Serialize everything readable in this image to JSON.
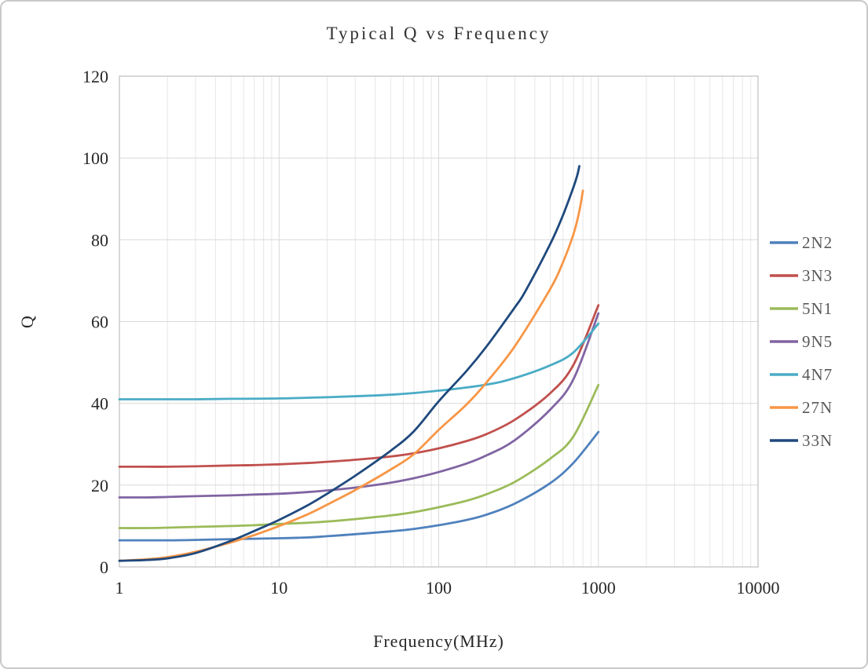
{
  "figure": {
    "background": "#ffffff",
    "border_color": "#c9c9c9"
  },
  "chart_data": {
    "type": "line",
    "title": "Typical Q vs Frequency",
    "xlabel": "Frequency(MHz)",
    "ylabel": "Q",
    "x_scale": "log",
    "xlim": [
      1,
      10000
    ],
    "ylim": [
      0,
      120
    ],
    "x_ticks": [
      1,
      10,
      100,
      1000,
      10000
    ],
    "y_ticks": [
      0,
      20,
      40,
      60,
      80,
      100,
      120
    ],
    "grid": {
      "major_color": "#d9d9d9",
      "minor_color": "#e7e7e7",
      "border_color": "#bfbfbf",
      "show_minor_x": true
    },
    "legend_position": "right",
    "series": [
      {
        "name": "2N2",
        "color": "#4F81BD",
        "points": [
          [
            1,
            6.5
          ],
          [
            1.5,
            6.5
          ],
          [
            2,
            6.5
          ],
          [
            3,
            6.6
          ],
          [
            5,
            6.8
          ],
          [
            7,
            6.9
          ],
          [
            10,
            7.0
          ],
          [
            15,
            7.2
          ],
          [
            20,
            7.5
          ],
          [
            30,
            8.0
          ],
          [
            50,
            8.7
          ],
          [
            70,
            9.3
          ],
          [
            100,
            10.2
          ],
          [
            150,
            11.5
          ],
          [
            200,
            12.8
          ],
          [
            300,
            15.5
          ],
          [
            500,
            20.5
          ],
          [
            700,
            25.5
          ],
          [
            1000,
            33
          ]
        ]
      },
      {
        "name": "3N3",
        "color": "#C0504D",
        "points": [
          [
            1,
            24.5
          ],
          [
            1.5,
            24.5
          ],
          [
            2,
            24.5
          ],
          [
            3,
            24.6
          ],
          [
            5,
            24.8
          ],
          [
            7,
            24.9
          ],
          [
            10,
            25.1
          ],
          [
            15,
            25.4
          ],
          [
            20,
            25.7
          ],
          [
            30,
            26.2
          ],
          [
            50,
            27.0
          ],
          [
            70,
            27.8
          ],
          [
            100,
            29.0
          ],
          [
            150,
            30.8
          ],
          [
            200,
            32.5
          ],
          [
            300,
            36.0
          ],
          [
            500,
            42.5
          ],
          [
            700,
            49.5
          ],
          [
            1000,
            64
          ]
        ]
      },
      {
        "name": "5N1",
        "color": "#9BBB59",
        "points": [
          [
            1,
            9.5
          ],
          [
            1.5,
            9.5
          ],
          [
            2,
            9.6
          ],
          [
            3,
            9.8
          ],
          [
            5,
            10.0
          ],
          [
            7,
            10.2
          ],
          [
            10,
            10.5
          ],
          [
            15,
            10.8
          ],
          [
            20,
            11.1
          ],
          [
            30,
            11.7
          ],
          [
            50,
            12.6
          ],
          [
            70,
            13.4
          ],
          [
            100,
            14.6
          ],
          [
            150,
            16.2
          ],
          [
            200,
            17.8
          ],
          [
            300,
            20.8
          ],
          [
            500,
            26.5
          ],
          [
            700,
            32.0
          ],
          [
            1000,
            44.5
          ]
        ]
      },
      {
        "name": "9N5",
        "color": "#8064A2",
        "points": [
          [
            1,
            17.0
          ],
          [
            1.5,
            17.0
          ],
          [
            2,
            17.1
          ],
          [
            3,
            17.3
          ],
          [
            5,
            17.5
          ],
          [
            7,
            17.7
          ],
          [
            10,
            17.9
          ],
          [
            15,
            18.3
          ],
          [
            20,
            18.7
          ],
          [
            30,
            19.4
          ],
          [
            50,
            20.6
          ],
          [
            70,
            21.7
          ],
          [
            100,
            23.2
          ],
          [
            150,
            25.3
          ],
          [
            200,
            27.3
          ],
          [
            300,
            31.0
          ],
          [
            500,
            38.5
          ],
          [
            700,
            46.0
          ],
          [
            1000,
            62
          ]
        ]
      },
      {
        "name": "4N7",
        "color": "#4BACC6",
        "points": [
          [
            1,
            41.0
          ],
          [
            2,
            41.0
          ],
          [
            3,
            41.0
          ],
          [
            5,
            41.1
          ],
          [
            10,
            41.2
          ],
          [
            20,
            41.5
          ],
          [
            50,
            42.1
          ],
          [
            100,
            43.1
          ],
          [
            200,
            44.6
          ],
          [
            300,
            46.2
          ],
          [
            500,
            49.3
          ],
          [
            700,
            52.5
          ],
          [
            1000,
            59.5
          ]
        ]
      },
      {
        "name": "27N",
        "color": "#F79646",
        "points": [
          [
            1,
            1.5
          ],
          [
            1.5,
            1.9
          ],
          [
            2,
            2.4
          ],
          [
            3,
            3.7
          ],
          [
            5,
            6.0
          ],
          [
            7,
            7.8
          ],
          [
            10,
            10.0
          ],
          [
            15,
            12.8
          ],
          [
            20,
            15.2
          ],
          [
            30,
            18.8
          ],
          [
            50,
            23.8
          ],
          [
            70,
            27.6
          ],
          [
            100,
            33.5
          ],
          [
            150,
            39.8
          ],
          [
            200,
            45.2
          ],
          [
            300,
            54.0
          ],
          [
            500,
            68.0
          ],
          [
            600,
            74.5
          ],
          [
            700,
            81.5
          ],
          [
            760,
            87.0
          ],
          [
            800,
            92.0
          ]
        ]
      },
      {
        "name": "33N",
        "color": "#1F497D",
        "points": [
          [
            1,
            1.5
          ],
          [
            1.5,
            1.7
          ],
          [
            2,
            2.1
          ],
          [
            3,
            3.4
          ],
          [
            5,
            6.4
          ],
          [
            7,
            8.8
          ],
          [
            10,
            11.5
          ],
          [
            15,
            15.0
          ],
          [
            20,
            17.9
          ],
          [
            30,
            22.3
          ],
          [
            50,
            28.4
          ],
          [
            70,
            33.2
          ],
          [
            100,
            40.5
          ],
          [
            150,
            48.0
          ],
          [
            200,
            54.0
          ],
          [
            300,
            63.5
          ],
          [
            350,
            67.5
          ],
          [
            500,
            79.0
          ],
          [
            600,
            86.0
          ],
          [
            700,
            93.0
          ],
          [
            740,
            96.0
          ],
          [
            760,
            98.0
          ]
        ]
      }
    ]
  }
}
